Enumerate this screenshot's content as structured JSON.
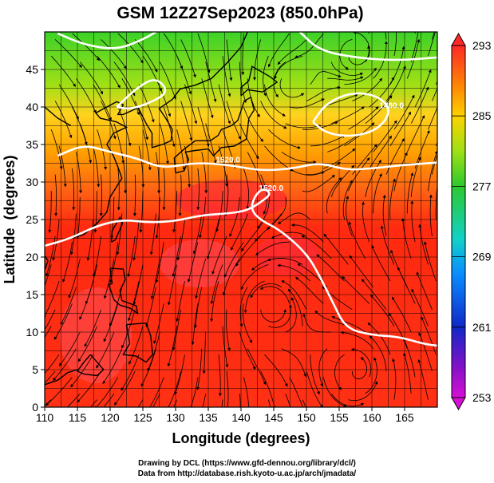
{
  "title": "GSM 12Z27Sep2023 (850.0hPa)",
  "chart_data": {
    "type": "heatmap",
    "title": "GSM 12Z27Sep2023 (850.0hPa)",
    "xlabel": "Longitude (degrees)",
    "ylabel": "Latitude  (degrees)",
    "xlim": [
      110,
      170
    ],
    "ylim": [
      0,
      50
    ],
    "x_ticks": [
      110,
      115,
      120,
      125,
      130,
      135,
      140,
      145,
      150,
      155,
      160,
      165
    ],
    "y_ticks": [
      0,
      5,
      10,
      15,
      20,
      25,
      30,
      35,
      40,
      45
    ],
    "grid": true,
    "colorbar": {
      "placement": "right",
      "min": 253,
      "max": 293,
      "ticks": [
        253,
        261,
        269,
        277,
        285,
        293
      ],
      "colors": [
        "#d60fd6",
        "#5a10c8",
        "#1028c8",
        "#0a8cff",
        "#10d2c8",
        "#2ec82e",
        "#9ee014",
        "#ffd200",
        "#ff8a00",
        "#ff3c00",
        "#ff2828"
      ]
    },
    "contours": [
      {
        "label": "1520.0",
        "level": 1520.0,
        "points": [
          [
            112,
            33.5
          ],
          [
            116,
            35
          ],
          [
            120,
            34
          ],
          [
            124,
            33.2
          ],
          [
            128,
            31.8
          ],
          [
            133,
            32.6
          ],
          [
            138,
            32.3
          ],
          [
            143,
            31.5
          ],
          [
            148,
            31.8
          ],
          [
            152,
            32.6
          ],
          [
            156,
            31.6
          ],
          [
            160,
            31.8
          ],
          [
            164,
            32.2
          ],
          [
            170,
            32.6
          ]
        ]
      },
      {
        "label": "1520.0",
        "level": 1520.0,
        "points": [
          [
            110,
            21.5
          ],
          [
            114,
            22.5
          ],
          [
            118,
            24.2
          ],
          [
            122,
            25
          ],
          [
            126,
            24.6
          ],
          [
            130,
            24.8
          ],
          [
            134,
            25.6
          ],
          [
            138,
            25.8
          ],
          [
            141,
            26.2
          ],
          [
            143.5,
            27.6
          ],
          [
            144.6,
            28.5
          ],
          [
            143.3,
            29.2
          ],
          [
            142,
            28
          ],
          [
            141.5,
            26.3
          ],
          [
            143,
            24.9
          ],
          [
            146,
            23.6
          ],
          [
            150,
            20.5
          ],
          [
            152,
            17.5
          ],
          [
            154,
            14
          ],
          [
            156,
            10.5
          ],
          [
            160,
            9.6
          ],
          [
            164,
            9.4
          ],
          [
            168,
            8.4
          ],
          [
            170,
            8.2
          ]
        ]
      },
      {
        "label": "1480.0",
        "level": 1480.0,
        "points": [
          [
            151,
            38
          ],
          [
            153,
            40.5
          ],
          [
            157,
            42
          ],
          [
            161,
            41.5
          ],
          [
            163,
            39.5
          ],
          [
            161,
            37
          ],
          [
            157,
            36
          ],
          [
            153,
            36.5
          ],
          [
            151,
            38
          ]
        ]
      },
      {
        "label": "",
        "level": 1480.0,
        "points": [
          [
            112,
            49.8
          ],
          [
            116,
            48.3
          ],
          [
            121,
            47.6
          ],
          [
            125,
            49
          ],
          [
            127,
            50
          ]
        ]
      },
      {
        "label": "",
        "level": 1480.0,
        "points": [
          [
            149,
            50
          ],
          [
            152,
            47.5
          ],
          [
            158,
            46.5
          ],
          [
            164,
            46.2
          ],
          [
            170,
            46.6
          ]
        ]
      },
      {
        "label": "",
        "level": 1480.0,
        "points": [
          [
            121,
            40
          ],
          [
            124,
            42.5
          ],
          [
            127,
            44
          ],
          [
            129,
            42
          ],
          [
            126,
            40.5
          ],
          [
            123,
            39.7
          ],
          [
            121,
            40
          ]
        ]
      }
    ],
    "vortices": [
      {
        "lon": 158,
        "lat": 5
      },
      {
        "lon": 144,
        "lat": 13.5
      },
      {
        "lon": 147,
        "lat": 43
      },
      {
        "lon": 158,
        "lat": 47
      }
    ]
  },
  "credits": {
    "line1": "Drawing by DCL (https://www.gfd-dennou.org/library/dcl/)",
    "line2": "Data from http://database.rish.kyoto-u.ac.jp/arch/jmadata/"
  },
  "colors": {
    "warm": "#ff2a10",
    "orange": "#ff8a00",
    "yellow": "#ffd21e",
    "green": "#3cd228",
    "contour": "#ffffff",
    "streamline": "#000000",
    "coast": "#000000"
  }
}
